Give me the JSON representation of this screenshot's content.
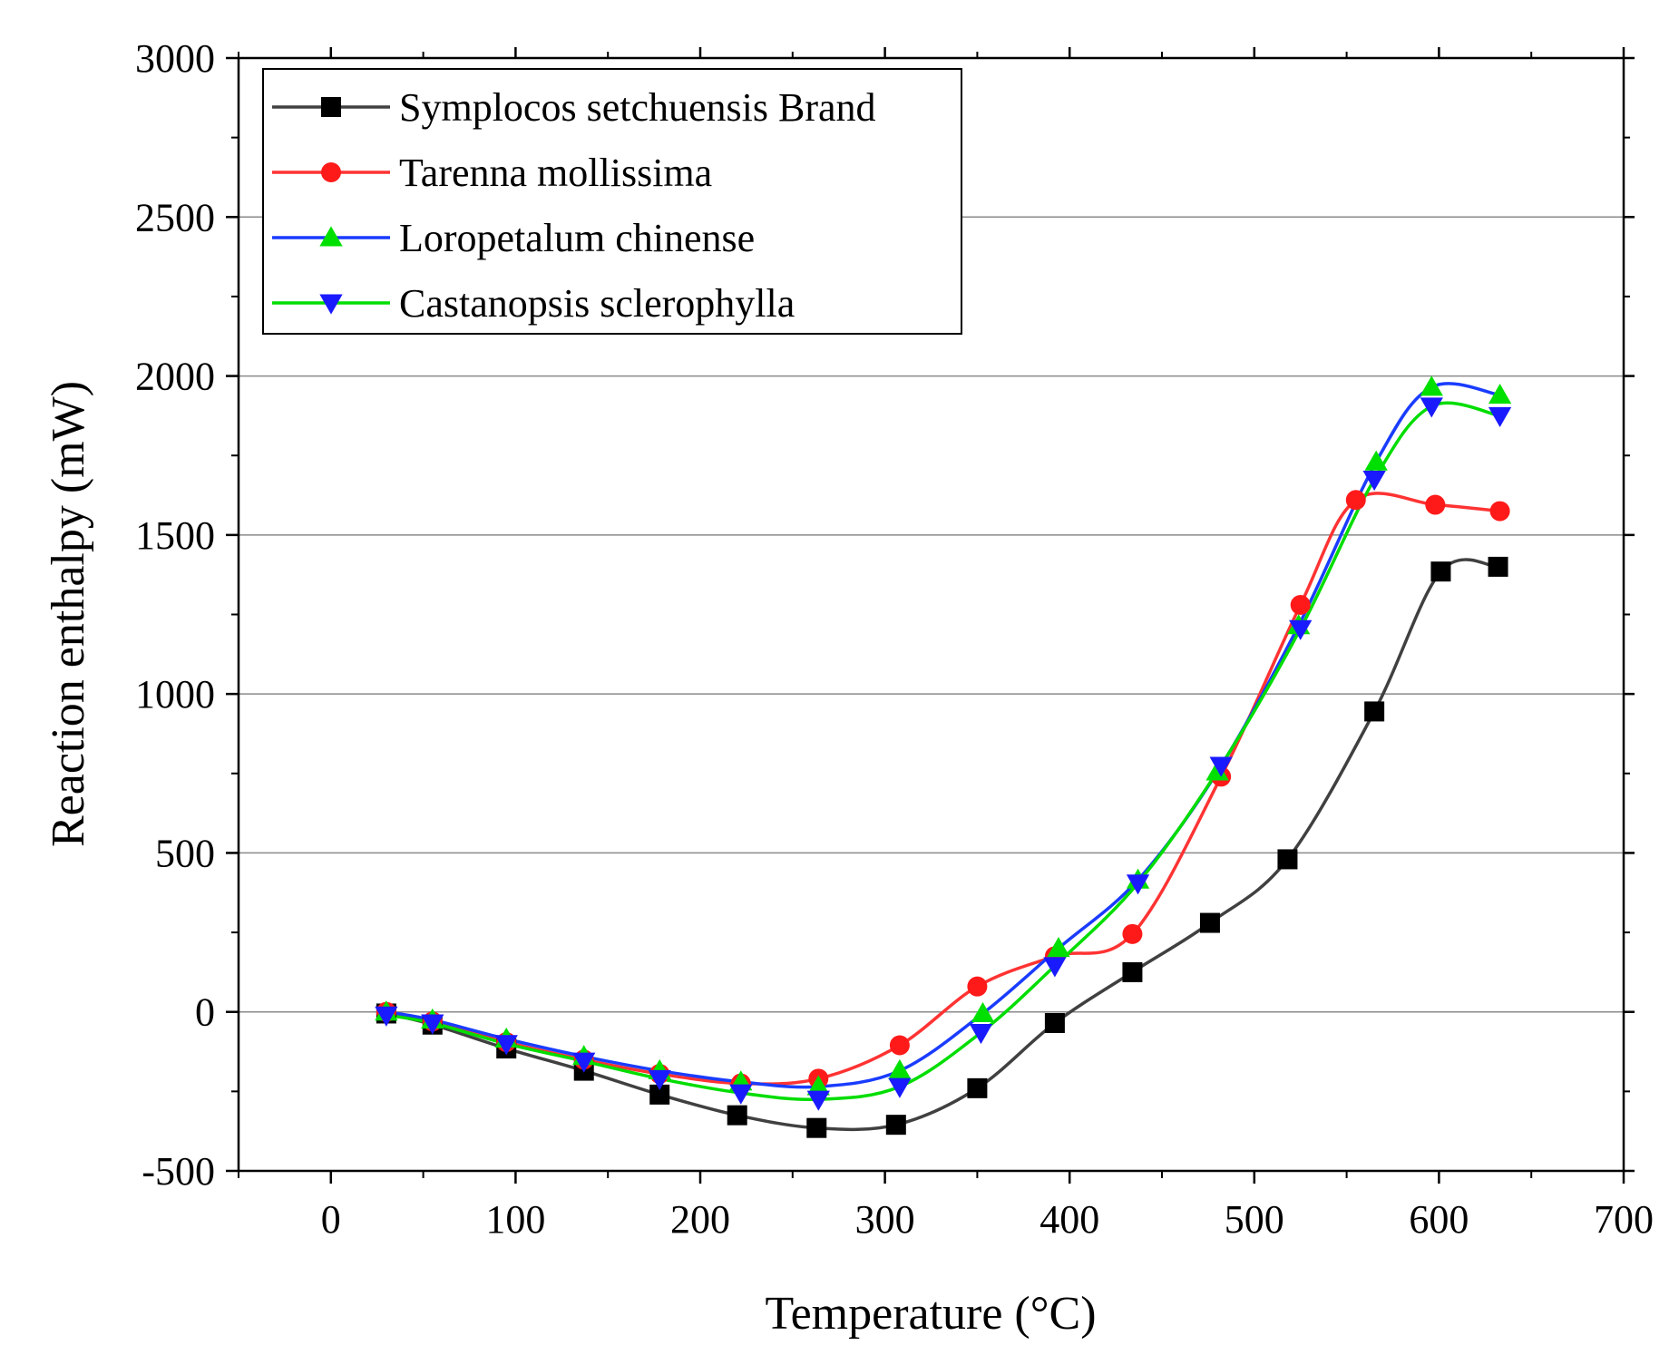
{
  "chart_data": {
    "type": "line",
    "xlabel": "Temperature (°C)",
    "ylabel": "Reaction enthalpy (mW)",
    "xlim": [
      -50,
      700
    ],
    "ylim": [
      -500,
      3000
    ],
    "xticks": [
      0,
      100,
      200,
      300,
      400,
      500,
      600,
      700
    ],
    "yticks": [
      -500,
      0,
      500,
      1000,
      1500,
      2000,
      2500,
      3000
    ],
    "xtick_labels": [
      "0",
      "100",
      "200",
      "300",
      "400",
      "500",
      "600",
      "700"
    ],
    "ytick_labels": [
      "-500",
      "0",
      "500",
      "1000",
      "1500",
      "2000",
      "2500",
      "3000"
    ],
    "grid": "horizontal",
    "legend_position": "top-left",
    "series": [
      {
        "name": "Symplocos setchuensis Brand",
        "color": "#404040",
        "marker": "square",
        "x": [
          30,
          55,
          95,
          137,
          178,
          220,
          263,
          306,
          350,
          392,
          434,
          476,
          518,
          565,
          601,
          632
        ],
        "y": [
          -5,
          -40,
          -115,
          -185,
          -260,
          -325,
          -365,
          -355,
          -240,
          -35,
          125,
          280,
          480,
          945,
          1385,
          1400
        ]
      },
      {
        "name": "Tarenna mollissima",
        "color": "#ff3333",
        "marker": "circle",
        "x": [
          30,
          55,
          95,
          137,
          178,
          222,
          264,
          308,
          350,
          392,
          434,
          482,
          525,
          555,
          598,
          633
        ],
        "y": [
          0,
          -30,
          -95,
          -150,
          -195,
          -225,
          -210,
          -105,
          80,
          175,
          245,
          740,
          1280,
          1610,
          1595,
          1575
        ]
      },
      {
        "name": "Loropetalum chinense",
        "color": "#1a3cff",
        "marker": "triangle-up",
        "x": [
          30,
          55,
          95,
          137,
          178,
          222,
          264,
          308,
          353,
          394,
          437,
          480,
          524,
          566,
          596,
          633
        ],
        "y": [
          0,
          -25,
          -85,
          -140,
          -185,
          -220,
          -235,
          -185,
          -5,
          200,
          415,
          755,
          1215,
          1730,
          1965,
          1940
        ]
      },
      {
        "name": "Castanopsis sclerophylla",
        "color": "#00dd00",
        "marker": "triangle-down",
        "x": [
          30,
          55,
          95,
          137,
          178,
          222,
          264,
          308,
          352,
          392,
          437,
          482,
          525,
          565,
          596,
          633
        ],
        "y": [
          -10,
          -35,
          -100,
          -155,
          -210,
          -255,
          -275,
          -235,
          -65,
          145,
          405,
          775,
          1205,
          1675,
          1905,
          1875
        ]
      }
    ]
  }
}
